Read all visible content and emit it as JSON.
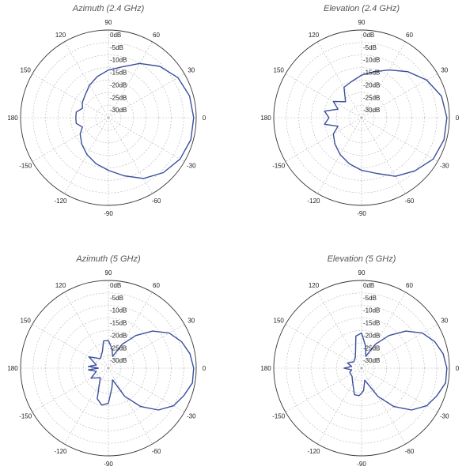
{
  "chart_data": [
    {
      "type": "polar-line",
      "title": "Azimuth (2.4 GHz)",
      "radial_ticks": [
        "0dB",
        "-5dB",
        "-10dB",
        "-15dB",
        "-20dB",
        "-25dB",
        "-30dB"
      ],
      "radial_range": [
        -35,
        0
      ],
      "angle_ticks": [
        "0",
        "30",
        "60",
        "90",
        "120",
        "150",
        "180",
        "-150",
        "-120",
        "-90",
        "-60",
        "-30"
      ],
      "grid": true,
      "line_color": "#3a4f9c",
      "series": [
        {
          "angle_deg": [
            0,
            15,
            30,
            45,
            60,
            75,
            90,
            105,
            120,
            135,
            150,
            160,
            170,
            180,
            190,
            200,
            210,
            225,
            240,
            255,
            270,
            285,
            300,
            315,
            330,
            345
          ],
          "gain_db": [
            -1,
            -1.5,
            -3,
            -6,
            -10,
            -14,
            -16,
            -18,
            -20,
            -22,
            -23,
            -24,
            -22,
            -22,
            -22,
            -24,
            -22,
            -20,
            -18,
            -16,
            -14,
            -11,
            -7,
            -4,
            -2,
            -1
          ]
        }
      ]
    },
    {
      "type": "polar-line",
      "title": "Elevation (2.4 GHz)",
      "radial_ticks": [
        "0dB",
        "-5dB",
        "-10dB",
        "-15dB",
        "-20dB",
        "-25dB",
        "-30dB"
      ],
      "radial_range": [
        -35,
        0
      ],
      "angle_ticks": [
        "0",
        "30",
        "60",
        "90",
        "120",
        "150",
        "180",
        "-150",
        "-120",
        "-90",
        "-60",
        "-30"
      ],
      "grid": true,
      "line_color": "#3a4f9c",
      "series": [
        {
          "angle_deg": [
            0,
            15,
            30,
            45,
            60,
            75,
            90,
            105,
            120,
            135,
            150,
            160,
            170,
            180,
            190,
            200,
            210,
            225,
            240,
            255,
            270,
            285,
            300,
            315,
            330,
            345
          ],
          "gain_db": [
            -1,
            -2,
            -5,
            -9,
            -13,
            -16,
            -18,
            -20,
            -21,
            -26,
            -22,
            -25,
            -20,
            -22,
            -20,
            -25,
            -22,
            -20,
            -18,
            -16,
            -14,
            -12,
            -8,
            -5,
            -2,
            -1
          ]
        }
      ]
    },
    {
      "type": "polar-line",
      "title": "Azimuth (5 GHz)",
      "radial_ticks": [
        "0dB",
        "-5dB",
        "-10dB",
        "-15dB",
        "-20dB",
        "-25dB",
        "-30dB"
      ],
      "radial_range": [
        -35,
        0
      ],
      "angle_ticks": [
        "0",
        "30",
        "60",
        "90",
        "120",
        "150",
        "180",
        "-150",
        "-120",
        "-90",
        "-60",
        "-30"
      ],
      "grid": true,
      "line_color": "#3a4f9c",
      "series": [
        {
          "angle_deg": [
            0,
            10,
            20,
            30,
            40,
            50,
            60,
            70,
            80,
            90,
            100,
            110,
            130,
            150,
            165,
            175,
            180,
            185,
            195,
            210,
            230,
            250,
            260,
            270,
            280,
            290,
            300,
            310,
            320,
            330,
            340,
            350
          ],
          "gain_db": [
            -1,
            -2,
            -4,
            -7,
            -12,
            -18,
            -24,
            -30,
            -27,
            -24,
            -24,
            -28,
            -30,
            -26,
            -30,
            -27,
            -31,
            -27,
            -30,
            -27,
            -30,
            -22,
            -20,
            -21,
            -27,
            -30,
            -22,
            -15,
            -9,
            -5,
            -3,
            -1
          ]
        }
      ]
    },
    {
      "type": "polar-line",
      "title": "Elevation (5 GHz)",
      "radial_ticks": [
        "0dB",
        "-5dB",
        "-10dB",
        "-15dB",
        "-20dB",
        "-25dB",
        "-30dB"
      ],
      "radial_range": [
        -35,
        0
      ],
      "angle_ticks": [
        "0",
        "30",
        "60",
        "90",
        "120",
        "150",
        "180",
        "-150",
        "-120",
        "-90",
        "-60",
        "-30"
      ],
      "grid": true,
      "line_color": "#3a4f9c",
      "series": [
        {
          "angle_deg": [
            0,
            10,
            20,
            30,
            40,
            50,
            60,
            70,
            80,
            90,
            100,
            110,
            120,
            140,
            160,
            170,
            180,
            190,
            200,
            220,
            240,
            255,
            265,
            270,
            275,
            285,
            300,
            310,
            320,
            330,
            340,
            350
          ],
          "gain_db": [
            -1,
            -2,
            -4,
            -7,
            -12,
            -18,
            -24,
            -30,
            -26,
            -21,
            -22,
            -28,
            -30,
            -31,
            -29,
            -31,
            -28,
            -31,
            -30,
            -30,
            -28,
            -24,
            -24,
            -25,
            -26,
            -30,
            -22,
            -15,
            -9,
            -5,
            -3,
            -1
          ]
        }
      ]
    }
  ]
}
